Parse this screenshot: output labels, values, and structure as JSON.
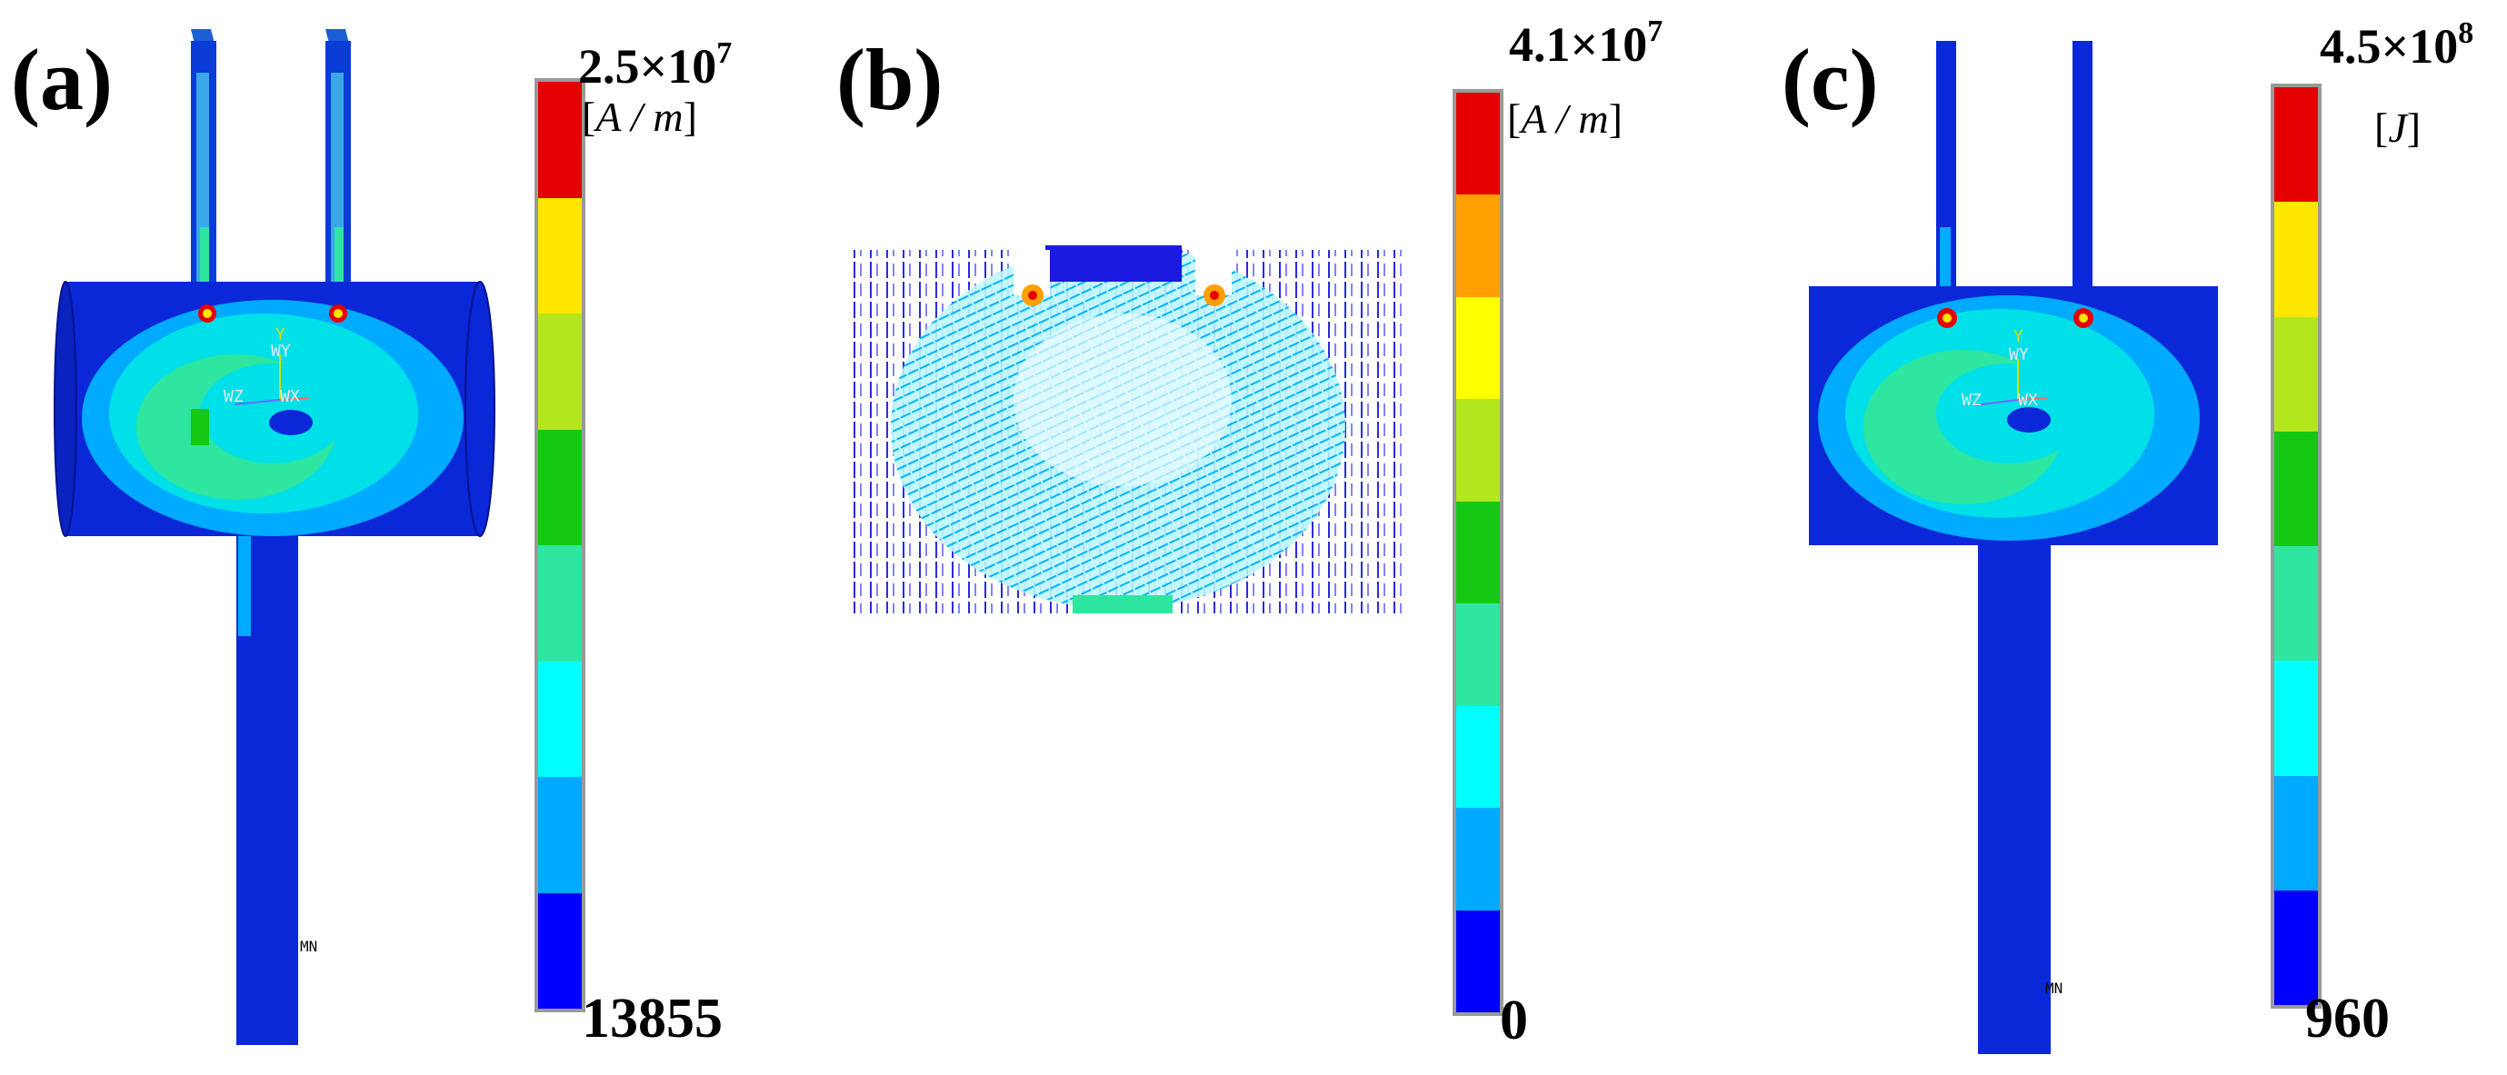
{
  "panels": [
    {
      "label": "(a)",
      "max_value": "2.5×10",
      "max_exp": "7",
      "unit": "A / m",
      "min_value": "13855",
      "marker": "MN",
      "axis_labels": [
        "Y",
        "WY",
        "WZ",
        "WX"
      ],
      "colorbar": [
        "#e50000",
        "#ffe600",
        "#b4e61e",
        "#14c814",
        "#2ee6a0",
        "#00ffff",
        "#00aaff",
        "#0000ff"
      ]
    },
    {
      "label": "(b)",
      "max_value": "4.1×10",
      "max_exp": "7",
      "unit": "A / m",
      "min_value": "0",
      "colorbar": [
        "#e50000",
        "#ffa000",
        "#ffff00",
        "#b4e61e",
        "#14c814",
        "#2ee6a0",
        "#00ffff",
        "#00aaff",
        "#0000ff"
      ]
    },
    {
      "label": "(c)",
      "max_value": "4.5×10",
      "max_exp": "8",
      "unit": "J",
      "min_value": "960",
      "marker": "MN",
      "axis_labels": [
        "Y",
        "WY",
        "WZ",
        "WX"
      ],
      "colorbar": [
        "#e50000",
        "#ffe600",
        "#b4e61e",
        "#14c814",
        "#2ee6a0",
        "#00ffff",
        "#00aaff",
        "#0000ff"
      ]
    }
  ]
}
